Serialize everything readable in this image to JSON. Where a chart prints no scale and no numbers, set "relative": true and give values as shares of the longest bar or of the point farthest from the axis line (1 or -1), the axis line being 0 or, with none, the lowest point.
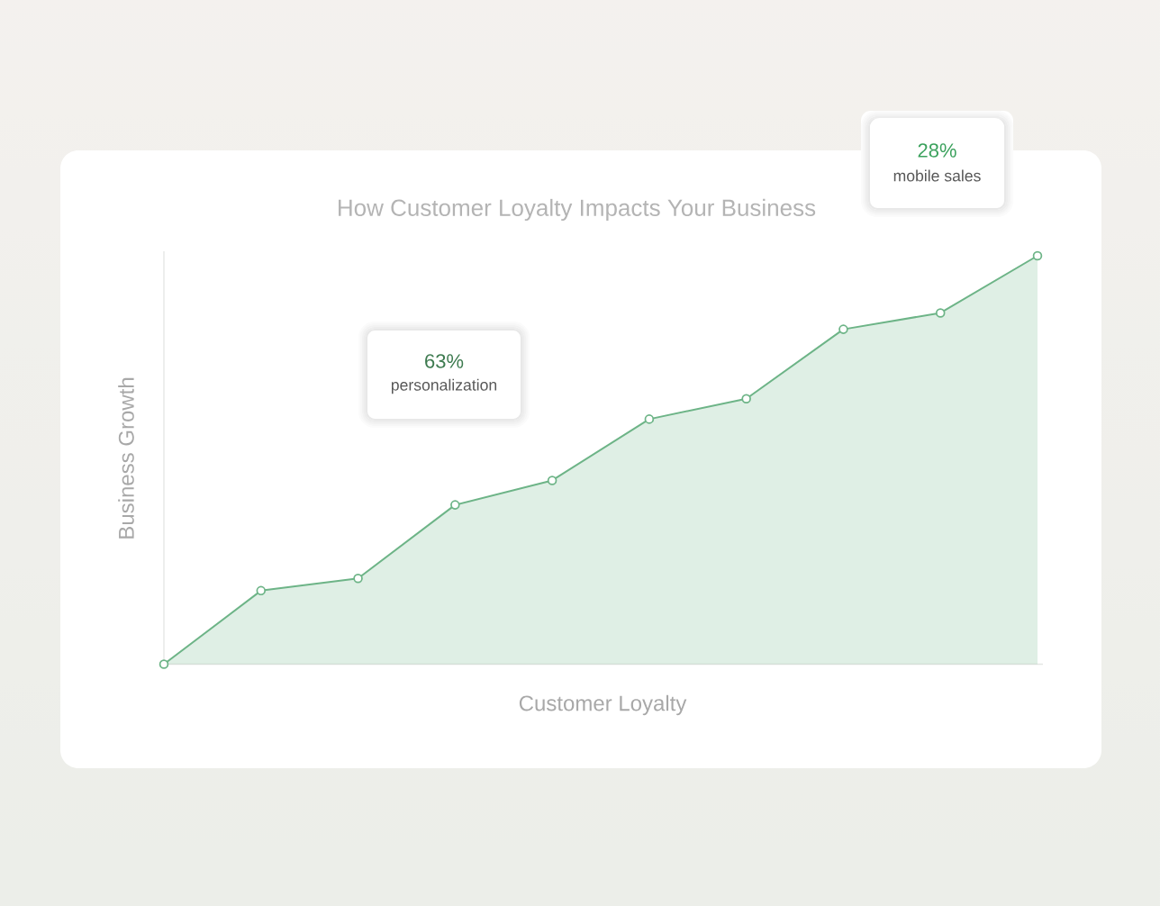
{
  "chart_data": {
    "type": "area",
    "title": "How Customer Loyalty Impacts Your Business",
    "xlabel": "Customer Loyalty",
    "ylabel": "Business Growth",
    "categories": [
      null,
      null,
      null,
      null,
      null,
      null,
      null,
      null,
      null,
      null
    ],
    "values": [
      0,
      0.18,
      0.21,
      0.39,
      0.45,
      0.6,
      0.65,
      0.82,
      0.86,
      1
    ],
    "color": "#6db487",
    "relative": true,
    "marker": "circle",
    "annotations": [
      "63%",
      "personalization",
      "28%",
      "mobile sales"
    ]
  }
}
